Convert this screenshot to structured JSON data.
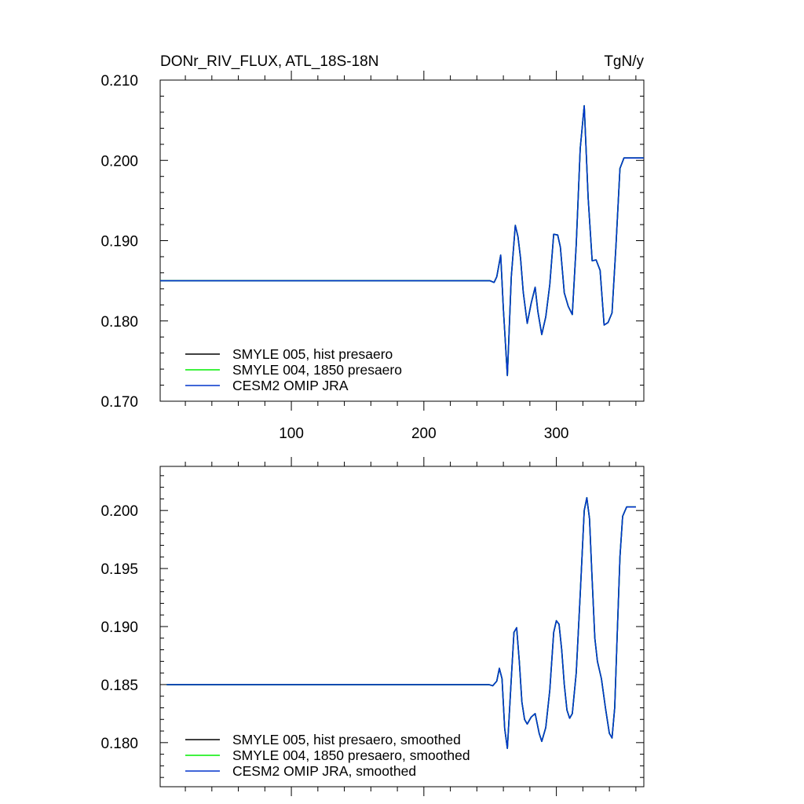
{
  "header": {
    "title_left": "DONr_RIV_FLUX, ATL_18S-18N",
    "title_right": "TgN/y"
  },
  "chart_data": [
    {
      "type": "line",
      "title": "DONr_RIV_FLUX, ATL_18S-18N",
      "units": "TgN/y",
      "xlim": [
        1,
        366
      ],
      "ylim": [
        0.17,
        0.21
      ],
      "x_ticks": [
        100,
        200,
        300
      ],
      "x_tick_labels": [
        "100",
        "200",
        "300"
      ],
      "y_ticks": [
        0.17,
        0.18,
        0.19,
        0.2,
        0.21
      ],
      "y_tick_labels": [
        "0.170",
        "0.180",
        "0.190",
        "0.200",
        "0.210"
      ],
      "grid": false,
      "legend_position": "bottom-left",
      "series": [
        {
          "name": "SMYLE 005, hist presaero",
          "color": "#000000",
          "x": [
            1,
            250,
            253,
            255,
            258,
            260,
            263,
            266,
            269,
            271,
            273,
            275,
            278,
            281,
            284,
            286,
            289,
            292,
            295,
            298,
            301,
            303,
            306,
            309,
            312,
            315,
            318,
            321,
            324,
            327,
            330,
            333,
            336,
            339,
            342,
            345,
            348,
            351,
            366
          ],
          "y": [
            0.185,
            0.185,
            0.1848,
            0.1855,
            0.1882,
            0.1815,
            0.1732,
            0.1855,
            0.1919,
            0.1905,
            0.1878,
            0.1836,
            0.1797,
            0.1822,
            0.1842,
            0.1812,
            0.1783,
            0.1805,
            0.1845,
            0.1908,
            0.1907,
            0.1892,
            0.1835,
            0.1818,
            0.1808,
            0.1895,
            0.2015,
            0.2068,
            0.1953,
            0.1875,
            0.1876,
            0.1863,
            0.1795,
            0.1798,
            0.181,
            0.1895,
            0.199,
            0.2003,
            0.2003
          ]
        },
        {
          "name": "SMYLE 004, 1850 presaero",
          "color": "#00ee00",
          "x": [
            1,
            250,
            253,
            255,
            258,
            260,
            263,
            266,
            269,
            271,
            273,
            275,
            278,
            281,
            284,
            286,
            289,
            292,
            295,
            298,
            301,
            303,
            306,
            309,
            312,
            315,
            318,
            321,
            324,
            327,
            330,
            333,
            336,
            339,
            342,
            345,
            348,
            351,
            366
          ],
          "y": [
            0.185,
            0.185,
            0.1848,
            0.1855,
            0.1882,
            0.1815,
            0.1732,
            0.1855,
            0.1919,
            0.1905,
            0.1878,
            0.1836,
            0.1797,
            0.1822,
            0.1842,
            0.1812,
            0.1783,
            0.1805,
            0.1845,
            0.1908,
            0.1907,
            0.1892,
            0.1835,
            0.1818,
            0.1808,
            0.1895,
            0.2015,
            0.2068,
            0.1953,
            0.1875,
            0.1876,
            0.1863,
            0.1795,
            0.1798,
            0.181,
            0.1895,
            0.199,
            0.2003,
            0.2003
          ]
        },
        {
          "name": "CESM2 OMIP JRA",
          "color": "#0033cc",
          "x": [
            1,
            250,
            253,
            255,
            258,
            260,
            263,
            266,
            269,
            271,
            273,
            275,
            278,
            281,
            284,
            286,
            289,
            292,
            295,
            298,
            301,
            303,
            306,
            309,
            312,
            315,
            318,
            321,
            324,
            327,
            330,
            333,
            336,
            339,
            342,
            345,
            348,
            351,
            366
          ],
          "y": [
            0.185,
            0.185,
            0.1848,
            0.1855,
            0.1882,
            0.1815,
            0.1732,
            0.1855,
            0.1919,
            0.1905,
            0.1878,
            0.1836,
            0.1797,
            0.1822,
            0.1842,
            0.1812,
            0.1783,
            0.1805,
            0.1845,
            0.1908,
            0.1907,
            0.1892,
            0.1835,
            0.1818,
            0.1808,
            0.1895,
            0.2015,
            0.2068,
            0.1953,
            0.1875,
            0.1876,
            0.1863,
            0.1795,
            0.1798,
            0.181,
            0.1895,
            0.199,
            0.2003,
            0.2003
          ]
        }
      ]
    },
    {
      "type": "line",
      "xlim": [
        1,
        366
      ],
      "ylim": [
        0.1762,
        0.2038
      ],
      "x_ticks": [
        100,
        200,
        300
      ],
      "x_tick_labels": [],
      "y_ticks": [
        0.18,
        0.185,
        0.19,
        0.195,
        0.2
      ],
      "y_tick_labels": [
        "0.180",
        "0.185",
        "0.190",
        "0.195",
        "0.200"
      ],
      "grid": false,
      "legend_position": "bottom-left",
      "series": [
        {
          "name": "SMYLE 005, hist presaero, smoothed",
          "color": "#000000",
          "x": [
            6,
            249,
            252,
            255,
            257,
            259,
            261,
            263,
            266,
            268,
            270,
            272,
            274,
            276,
            278,
            281,
            284,
            287,
            289,
            292,
            295,
            298,
            300,
            302,
            304,
            306,
            308,
            310,
            312,
            315,
            318,
            321,
            323,
            325,
            327,
            329,
            331,
            334,
            337,
            340,
            342,
            344,
            346,
            348,
            350,
            353,
            360
          ],
          "y": [
            0.185,
            0.185,
            0.1849,
            0.1853,
            0.1864,
            0.1855,
            0.1812,
            0.1795,
            0.1855,
            0.1895,
            0.1899,
            0.187,
            0.1835,
            0.182,
            0.1816,
            0.1822,
            0.1825,
            0.1808,
            0.1801,
            0.1813,
            0.1845,
            0.1895,
            0.1905,
            0.1902,
            0.188,
            0.185,
            0.1828,
            0.1821,
            0.1825,
            0.186,
            0.1928,
            0.2,
            0.2011,
            0.1993,
            0.194,
            0.189,
            0.187,
            0.1855,
            0.183,
            0.1808,
            0.1804,
            0.183,
            0.1895,
            0.196,
            0.1995,
            0.2003,
            0.2003
          ]
        },
        {
          "name": "SMYLE 004, 1850 presaero, smoothed",
          "color": "#00ee00",
          "x": [
            6,
            249,
            252,
            255,
            257,
            259,
            261,
            263,
            266,
            268,
            270,
            272,
            274,
            276,
            278,
            281,
            284,
            287,
            289,
            292,
            295,
            298,
            300,
            302,
            304,
            306,
            308,
            310,
            312,
            315,
            318,
            321,
            323,
            325,
            327,
            329,
            331,
            334,
            337,
            340,
            342,
            344,
            346,
            348,
            350,
            353,
            360
          ],
          "y": [
            0.185,
            0.185,
            0.1849,
            0.1853,
            0.1864,
            0.1855,
            0.1812,
            0.1795,
            0.1855,
            0.1895,
            0.1899,
            0.187,
            0.1835,
            0.182,
            0.1816,
            0.1822,
            0.1825,
            0.1808,
            0.1801,
            0.1813,
            0.1845,
            0.1895,
            0.1905,
            0.1902,
            0.188,
            0.185,
            0.1828,
            0.1821,
            0.1825,
            0.186,
            0.1928,
            0.2,
            0.2011,
            0.1993,
            0.194,
            0.189,
            0.187,
            0.1855,
            0.183,
            0.1808,
            0.1804,
            0.183,
            0.1895,
            0.196,
            0.1995,
            0.2003,
            0.2003
          ]
        },
        {
          "name": "CESM2 OMIP JRA, smoothed",
          "color": "#0033cc",
          "x": [
            6,
            249,
            252,
            255,
            257,
            259,
            261,
            263,
            266,
            268,
            270,
            272,
            274,
            276,
            278,
            281,
            284,
            287,
            289,
            292,
            295,
            298,
            300,
            302,
            304,
            306,
            308,
            310,
            312,
            315,
            318,
            321,
            323,
            325,
            327,
            329,
            331,
            334,
            337,
            340,
            342,
            344,
            346,
            348,
            350,
            353,
            360
          ],
          "y": [
            0.185,
            0.185,
            0.1849,
            0.1853,
            0.1864,
            0.1855,
            0.1812,
            0.1795,
            0.1855,
            0.1895,
            0.1899,
            0.187,
            0.1835,
            0.182,
            0.1816,
            0.1822,
            0.1825,
            0.1808,
            0.1801,
            0.1813,
            0.1845,
            0.1895,
            0.1905,
            0.1902,
            0.188,
            0.185,
            0.1828,
            0.1821,
            0.1825,
            0.186,
            0.1928,
            0.2,
            0.2011,
            0.1993,
            0.194,
            0.189,
            0.187,
            0.1855,
            0.183,
            0.1808,
            0.1804,
            0.183,
            0.1895,
            0.196,
            0.1995,
            0.2003,
            0.2003
          ]
        }
      ]
    }
  ]
}
